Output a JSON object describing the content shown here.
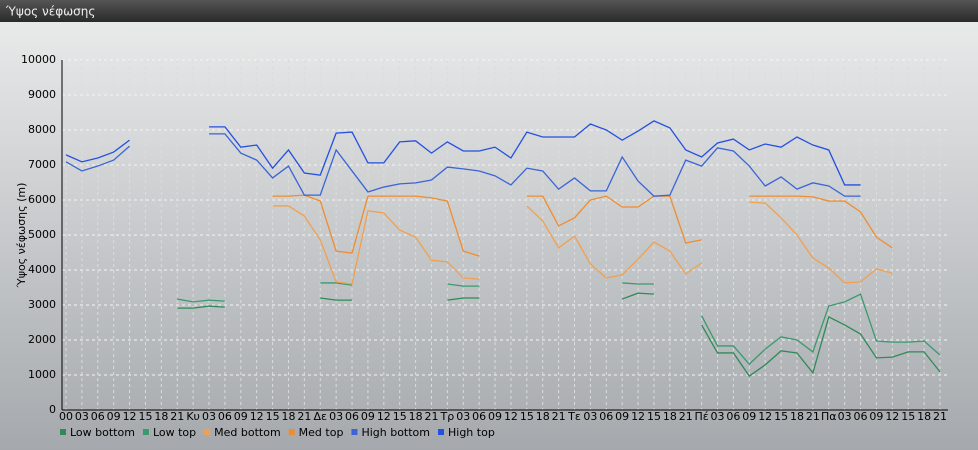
{
  "chart_data": {
    "type": "line",
    "title": "Ύψος νέφωσης",
    "y_label": "Ύψος νέφωσης (m)",
    "categories": [
      "00",
      "03",
      "06",
      "09",
      "12",
      "15",
      "18",
      "21",
      "Κυ",
      "03",
      "06",
      "09",
      "12",
      "15",
      "18",
      "21",
      "Δε",
      "03",
      "06",
      "09",
      "12",
      "15",
      "18",
      "21",
      "Τρ",
      "03",
      "06",
      "09",
      "12",
      "15",
      "18",
      "21",
      "Τε",
      "03",
      "06",
      "09",
      "12",
      "15",
      "18",
      "21",
      "Πέ",
      "03",
      "06",
      "09",
      "12",
      "15",
      "18",
      "21",
      "Πα",
      "03",
      "06",
      "09",
      "12",
      "15",
      "18",
      "21"
    ],
    "ylim": [
      0,
      10000
    ],
    "yticks": [
      0,
      1000,
      2000,
      3000,
      4000,
      5000,
      6000,
      7000,
      8000,
      9000,
      10000
    ],
    "grid": true,
    "series": [
      {
        "name": "Low bottom",
        "color": "#2e8b57",
        "values": [
          null,
          null,
          null,
          null,
          null,
          null,
          null,
          2910,
          2910,
          2970,
          2940,
          null,
          null,
          null,
          null,
          null,
          3200,
          3140,
          3140,
          null,
          null,
          null,
          null,
          null,
          3140,
          3200,
          3200,
          null,
          null,
          null,
          null,
          null,
          null,
          null,
          null,
          3170,
          3340,
          3310,
          null,
          null,
          2430,
          1630,
          1630,
          970,
          1290,
          1690,
          1630,
          1060,
          2660,
          2430,
          2170,
          1490,
          1510,
          1660,
          1660,
          1090
        ]
      },
      {
        "name": "Low top",
        "color": "#3a9a6e",
        "values": [
          null,
          null,
          null,
          null,
          null,
          null,
          null,
          3170,
          3090,
          3140,
          3110,
          null,
          null,
          null,
          null,
          null,
          3630,
          3630,
          3570,
          null,
          null,
          null,
          null,
          null,
          3600,
          3540,
          3540,
          null,
          null,
          null,
          null,
          null,
          null,
          null,
          null,
          3630,
          3600,
          3600,
          null,
          null,
          2690,
          1830,
          1830,
          1310,
          1740,
          2090,
          2000,
          1660,
          2970,
          3090,
          3310,
          1970,
          1940,
          1940,
          1970,
          1570
        ]
      },
      {
        "name": "Med bottom",
        "color": "#f0a050",
        "values": [
          null,
          null,
          null,
          null,
          null,
          null,
          null,
          null,
          null,
          null,
          null,
          null,
          null,
          5830,
          5830,
          5540,
          4860,
          3660,
          3600,
          5690,
          5630,
          5140,
          4940,
          4280,
          4230,
          3770,
          3740,
          null,
          null,
          5830,
          5400,
          4630,
          4970,
          4170,
          3770,
          3860,
          4310,
          4800,
          4540,
          3890,
          4200,
          null,
          null,
          5940,
          5910,
          5490,
          5000,
          4340,
          4060,
          3630,
          3660,
          4030,
          3910,
          null,
          null,
          null
        ]
      },
      {
        "name": "Med top",
        "color": "#f08c30",
        "values": [
          null,
          null,
          null,
          null,
          null,
          null,
          null,
          null,
          null,
          null,
          null,
          null,
          null,
          6110,
          6110,
          6140,
          5970,
          4540,
          4480,
          6110,
          6110,
          6110,
          6110,
          6060,
          5970,
          4540,
          4400,
          null,
          null,
          6110,
          6110,
          5260,
          5490,
          6000,
          6110,
          5800,
          5800,
          6110,
          6110,
          4770,
          4860,
          null,
          null,
          6110,
          6110,
          6110,
          6110,
          6090,
          5970,
          5970,
          5660,
          4940,
          4630,
          null,
          null,
          null
        ]
      },
      {
        "name": "High bottom",
        "color": "#3a64d8",
        "values": [
          7090,
          6830,
          6970,
          7140,
          7540,
          null,
          null,
          null,
          null,
          7890,
          7890,
          7340,
          7140,
          6630,
          6970,
          6140,
          6140,
          7430,
          6830,
          6230,
          6370,
          6460,
          6490,
          6570,
          6940,
          6890,
          6830,
          6690,
          6430,
          6910,
          6830,
          6310,
          6630,
          6260,
          6260,
          7230,
          6540,
          6110,
          6140,
          7140,
          6970,
          7490,
          7400,
          6970,
          6400,
          6660,
          6310,
          6490,
          6400,
          6110,
          6110,
          null,
          null,
          null,
          null,
          null
        ]
      },
      {
        "name": "High top",
        "color": "#2450e0",
        "values": [
          7290,
          7090,
          7200,
          7370,
          7710,
          null,
          null,
          null,
          null,
          8090,
          8090,
          7510,
          7570,
          6910,
          7430,
          6770,
          6710,
          7910,
          7940,
          7060,
          7060,
          7660,
          7690,
          7340,
          7660,
          7400,
          7400,
          7510,
          7200,
          7940,
          7800,
          7800,
          7800,
          8170,
          8000,
          7710,
          7970,
          8260,
          8060,
          7430,
          7230,
          7630,
          7740,
          7430,
          7600,
          7510,
          7800,
          7570,
          7430,
          6430,
          6430,
          null,
          null,
          null,
          null,
          null
        ]
      }
    ]
  }
}
